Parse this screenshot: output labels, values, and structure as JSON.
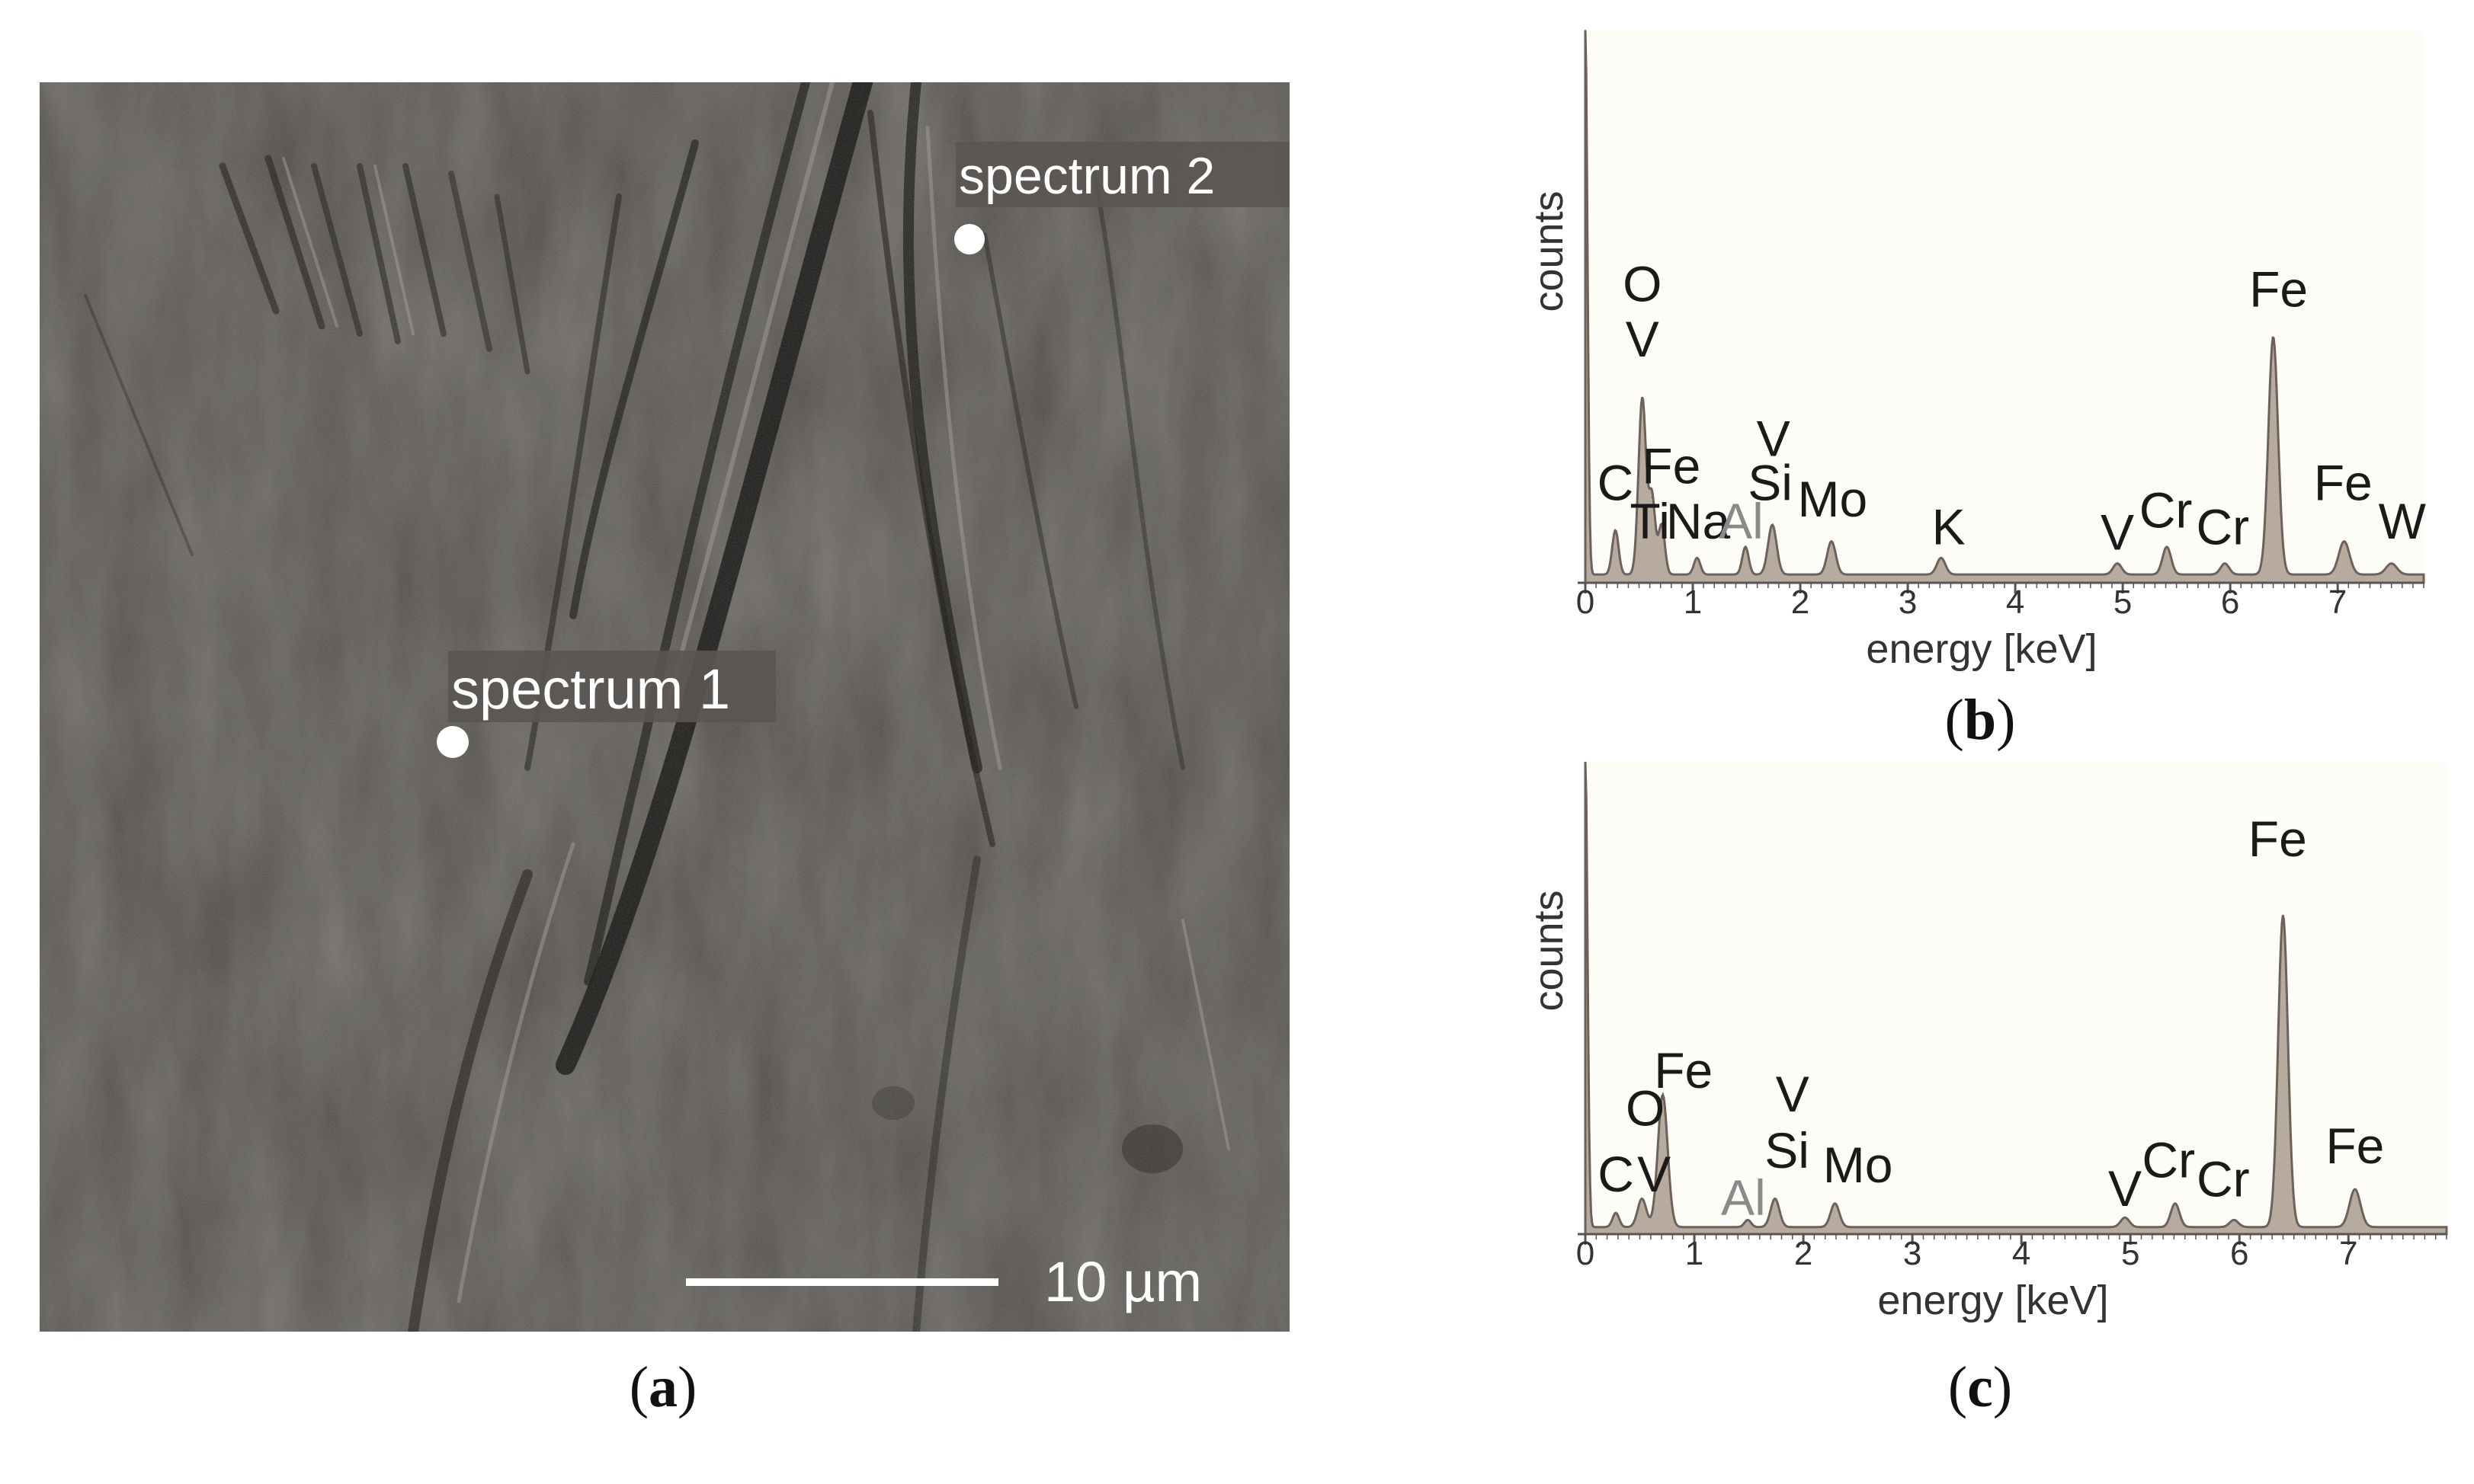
{
  "panel_a": {
    "spectrum1_label": "spectrum 1",
    "spectrum2_label": "spectrum 2",
    "scale_label": "10 µm",
    "caption_letter": "a"
  },
  "panel_b": {
    "caption_letter": "b"
  },
  "panel_c": {
    "caption_letter": "c"
  },
  "colors": {
    "sem_background": "#4f4c48",
    "peak_fill": "#b7aba0",
    "peak_stroke": "#6d6259",
    "plot_background": "#fdfcf6",
    "label_box": "#5a5552"
  },
  "chart_data": [
    {
      "type": "area",
      "panel": "b",
      "xlabel": "energy [keV]",
      "ylabel": "counts",
      "xlim": [
        0,
        7.8
      ],
      "ylim": [
        0,
        100
      ],
      "xticks": [
        0,
        1,
        2,
        3,
        4,
        5,
        6,
        7
      ],
      "baseline": 1.5,
      "peaks": [
        {
          "x": 0.0,
          "y": 100,
          "w": 0.02
        },
        {
          "x": 0.28,
          "y": 8,
          "w": 0.03
        },
        {
          "x": 0.53,
          "y": 32,
          "w": 0.035
        },
        {
          "x": 0.62,
          "y": 14,
          "w": 0.03
        },
        {
          "x": 0.71,
          "y": 9,
          "w": 0.03
        },
        {
          "x": 1.04,
          "y": 3,
          "w": 0.03
        },
        {
          "x": 1.49,
          "y": 5,
          "w": 0.03
        },
        {
          "x": 1.74,
          "y": 9,
          "w": 0.04
        },
        {
          "x": 2.29,
          "y": 6,
          "w": 0.04
        },
        {
          "x": 3.31,
          "y": 3,
          "w": 0.04
        },
        {
          "x": 4.95,
          "y": 2,
          "w": 0.04
        },
        {
          "x": 5.41,
          "y": 5,
          "w": 0.04
        },
        {
          "x": 5.95,
          "y": 2,
          "w": 0.04
        },
        {
          "x": 6.4,
          "y": 43,
          "w": 0.045
        },
        {
          "x": 7.06,
          "y": 6,
          "w": 0.05
        },
        {
          "x": 7.5,
          "y": 2,
          "w": 0.05
        }
      ],
      "peak_labels": [
        {
          "text": "O",
          "x": 0.53,
          "y": 51
        },
        {
          "text": "V",
          "x": 0.53,
          "y": 41
        },
        {
          "text": "C",
          "x": 0.28,
          "y": 15
        },
        {
          "text": "Fe",
          "x": 0.8,
          "y": 18
        },
        {
          "text": "Ti",
          "x": 0.6,
          "y": 8
        },
        {
          "text": "Na",
          "x": 1.05,
          "y": 8
        },
        {
          "text": "Al",
          "x": 1.45,
          "y": 8,
          "faint": true
        },
        {
          "text": "V",
          "x": 1.75,
          "y": 23
        },
        {
          "text": "Si",
          "x": 1.72,
          "y": 15
        },
        {
          "text": "Mo",
          "x": 2.3,
          "y": 12
        },
        {
          "text": "K",
          "x": 3.38,
          "y": 7
        },
        {
          "text": "V",
          "x": 4.95,
          "y": 6
        },
        {
          "text": "Cr",
          "x": 5.4,
          "y": 10
        },
        {
          "text": "Cr",
          "x": 5.93,
          "y": 7
        },
        {
          "text": "Fe",
          "x": 6.45,
          "y": 50
        },
        {
          "text": "Fe",
          "x": 7.05,
          "y": 15
        },
        {
          "text": "W",
          "x": 7.6,
          "y": 8
        }
      ]
    },
    {
      "type": "area",
      "panel": "c",
      "xlabel": "energy [keV]",
      "ylabel": "counts",
      "xlim": [
        0,
        7.9
      ],
      "ylim": [
        0,
        100
      ],
      "xticks": [
        0,
        1,
        2,
        3,
        4,
        5,
        6,
        7
      ],
      "baseline": 1.5,
      "peaks": [
        {
          "x": 0.0,
          "y": 100,
          "w": 0.02
        },
        {
          "x": 0.28,
          "y": 3,
          "w": 0.03
        },
        {
          "x": 0.52,
          "y": 6,
          "w": 0.04
        },
        {
          "x": 0.71,
          "y": 28,
          "w": 0.045
        },
        {
          "x": 1.49,
          "y": 1.5,
          "w": 0.03
        },
        {
          "x": 1.74,
          "y": 6,
          "w": 0.04
        },
        {
          "x": 2.29,
          "y": 5,
          "w": 0.04
        },
        {
          "x": 4.95,
          "y": 2,
          "w": 0.04
        },
        {
          "x": 5.41,
          "y": 5,
          "w": 0.04
        },
        {
          "x": 5.95,
          "y": 1.5,
          "w": 0.04
        },
        {
          "x": 6.4,
          "y": 66,
          "w": 0.045
        },
        {
          "x": 7.06,
          "y": 8,
          "w": 0.05
        }
      ],
      "peak_labels": [
        {
          "text": "Fe",
          "x": 0.9,
          "y": 31
        },
        {
          "text": "O",
          "x": 0.55,
          "y": 23
        },
        {
          "text": "C",
          "x": 0.28,
          "y": 9
        },
        {
          "text": "V",
          "x": 0.63,
          "y": 9
        },
        {
          "text": "Al",
          "x": 1.45,
          "y": 4,
          "faint": true
        },
        {
          "text": "V",
          "x": 1.9,
          "y": 26
        },
        {
          "text": "Si",
          "x": 1.85,
          "y": 14
        },
        {
          "text": "Mo",
          "x": 2.5,
          "y": 11
        },
        {
          "text": "V",
          "x": 4.95,
          "y": 6
        },
        {
          "text": "Cr",
          "x": 5.35,
          "y": 12
        },
        {
          "text": "Cr",
          "x": 5.85,
          "y": 8
        },
        {
          "text": "Fe",
          "x": 6.35,
          "y": 80
        },
        {
          "text": "Fe",
          "x": 7.06,
          "y": 15
        }
      ]
    }
  ]
}
